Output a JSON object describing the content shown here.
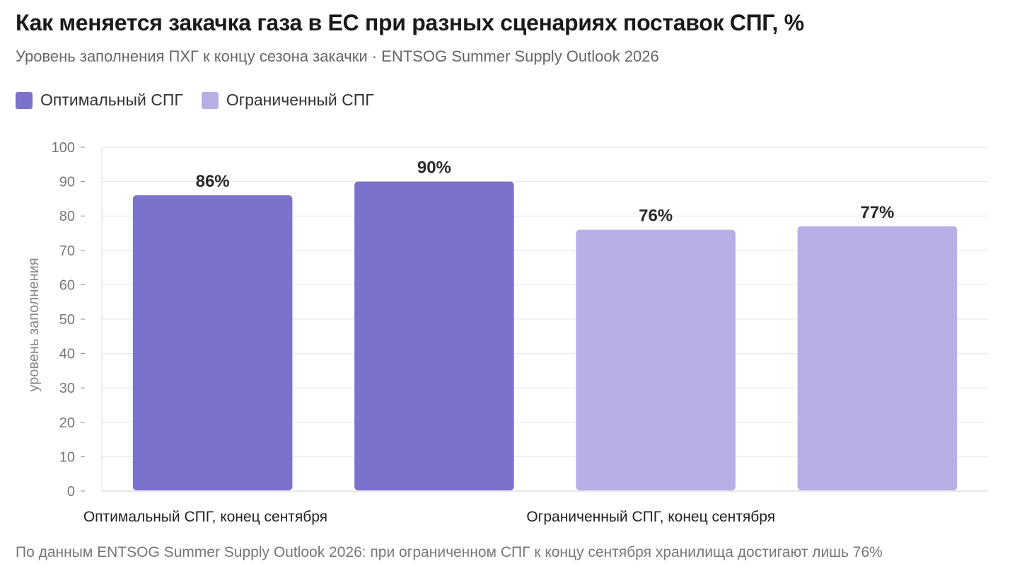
{
  "title": "Как меняется закачка газа в ЕС при разных сценариях поставок СПГ, %",
  "subtitle": "Уровень заполнения ПХГ к концу сезона закачки · ENTSOG Summer Supply Outlook 2026",
  "legend": [
    {
      "label": "Оптимальный СПГ",
      "color": "#7b72cb"
    },
    {
      "label": "Ограниченный СПГ",
      "color": "#b7b0e7"
    }
  ],
  "note": "По данным ENTSOG Summer Supply Outlook 2026: при ограниченном СПГ к концу сентября хранилища достигают лишь 76%",
  "chart_data": {
    "type": "bar",
    "title": "Как меняется закачка газа в ЕС при разных сценариях поставок СПГ, %",
    "subtitle": "Уровень заполнения ПХГ к концу сезона закачки · ENTSOG Summer Supply Outlook 2026",
    "xlabel": "",
    "ylabel": "уровень заполнения",
    "ylim": [
      0,
      100
    ],
    "yticks": [
      0,
      10,
      20,
      30,
      40,
      50,
      60,
      70,
      80,
      90,
      100
    ],
    "grid": true,
    "legend_position": "top-left",
    "categories": [
      "Оптимальный СПГ, конец сентября",
      "Ограниченный СПГ, конец сентября"
    ],
    "bars": [
      {
        "series": "Оптимальный СПГ",
        "value": 86,
        "label": "86%",
        "color": "#7b72cb"
      },
      {
        "series": "Оптимальный СПГ",
        "value": 90,
        "label": "90%",
        "color": "#7b72cb"
      },
      {
        "series": "Ограниченный СПГ",
        "value": 76,
        "label": "76%",
        "color": "#b7b0e7"
      },
      {
        "series": "Ограниченный СПГ",
        "value": 77,
        "label": "77%",
        "color": "#b7b0e7"
      }
    ]
  }
}
